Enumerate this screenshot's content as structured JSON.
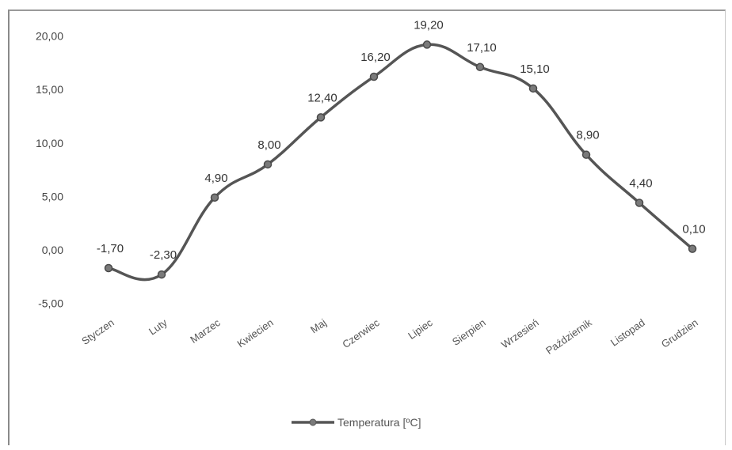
{
  "chart_data": {
    "type": "line",
    "categories": [
      "Styczen",
      "Luty",
      "Marzec",
      "Kwiecien",
      "Maj",
      "Czerwiec",
      "Lipiec",
      "Sierpien",
      "Wrzesień",
      "Październik",
      "Listopad",
      "Grudzien"
    ],
    "series": [
      {
        "name": "Temperatura [ºC]",
        "values": [
          -1.7,
          -2.3,
          4.9,
          8.0,
          12.4,
          16.2,
          19.2,
          17.1,
          15.1,
          8.9,
          4.4,
          0.1
        ],
        "labels": [
          "-1,70",
          "-2,30",
          "4,90",
          "8,00",
          "12,40",
          "16,20",
          "19,20",
          "17,10",
          "15,10",
          "8,90",
          "4,40",
          "0,10"
        ],
        "color": "#555555"
      }
    ],
    "y_ticks": [
      "20,00",
      "15,00",
      "10,00",
      "5,00",
      "0,00",
      "-5,00"
    ],
    "y_tick_values": [
      20,
      15,
      10,
      5,
      0,
      -5
    ],
    "ylim": [
      -5,
      20
    ],
    "grid": false,
    "legend_position": "bottom-center"
  }
}
